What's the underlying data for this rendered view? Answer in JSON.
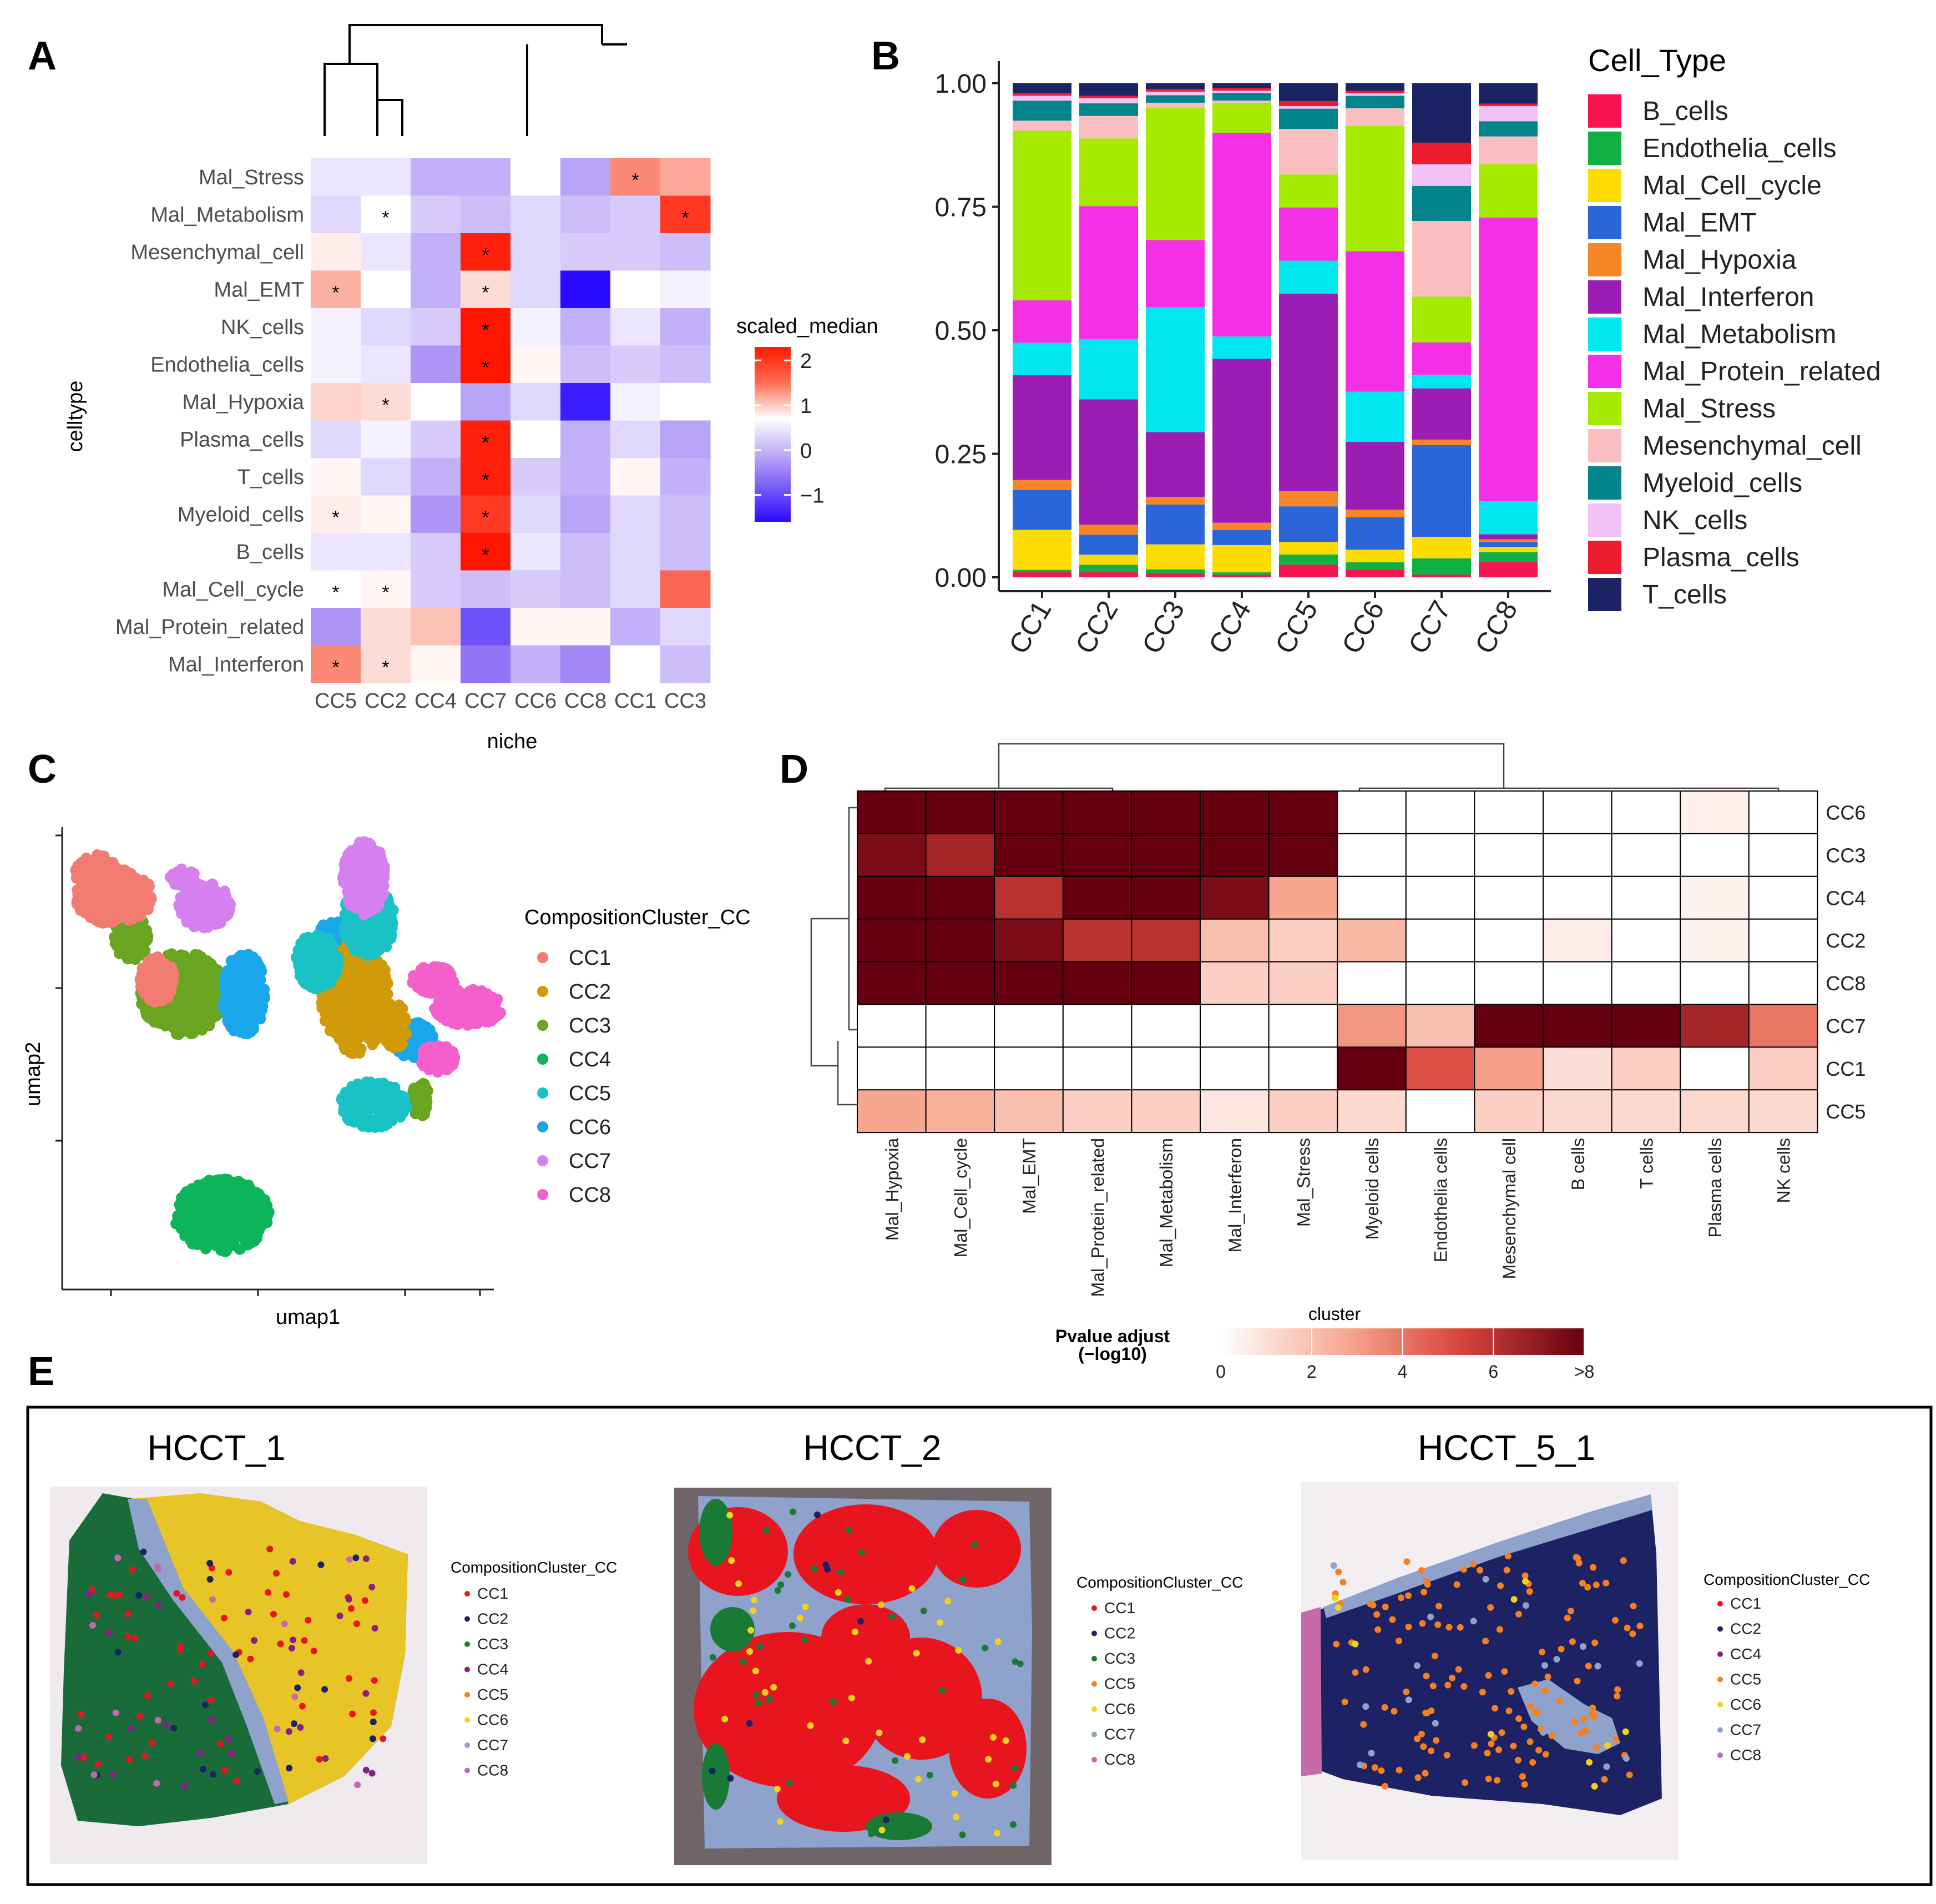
{
  "figure": {
    "panel_letters": [
      "A",
      "B",
      "C",
      "D",
      "E"
    ]
  },
  "colors": {
    "cell_types": {
      "B_cells": "#F8144E",
      "Endothelia_cells": "#10B043",
      "Mal_Cell_cycle": "#FDDC02",
      "Mal_EMT": "#2B66D8",
      "Mal_Hypoxia": "#F78726",
      "Mal_Interferon": "#9B1DB3",
      "Mal_Metabolism": "#00E7EF",
      "Mal_Protein_related": "#F52FE6",
      "Mal_Stress": "#A6EA02",
      "Mesenchymal_cell": "#FABDC0",
      "Myeloid_cells": "#03838A",
      "NK_cells": "#F2C1F5",
      "Plasma_cells": "#EC1C2E",
      "T_cells": "#1B2365"
    },
    "clusters": {
      "CC1": "#F47B71",
      "CC2": "#D19A08",
      "CC3": "#69A521",
      "CC4": "#0DB45A",
      "CC5": "#18C2C5",
      "CC6": "#1AA6EB",
      "CC7": "#D680F0",
      "CC8": "#F55FCB"
    },
    "spatial": {
      "CC1": "#E8141E",
      "CC2": "#1C2263",
      "CC3": "#197A36",
      "CC4": "#8B1E82",
      "CC5": "#F7801E",
      "CC6": "#F3D21A",
      "CC7": "#8EA2CC",
      "CC8": "#C468B4"
    }
  },
  "chart_data": [
    {
      "panel": "A",
      "type": "heatmap",
      "xlabel": "niche",
      "ylabel": "celltype",
      "columns": [
        "CC5",
        "CC2",
        "CC4",
        "CC7",
        "CC6",
        "CC8",
        "CC1",
        "CC3"
      ],
      "rows": [
        "Mal_Stress",
        "Mal_Metabolism",
        "Mesenchymal_cell",
        "Mal_EMT",
        "NK_cells",
        "Endothelia_cells",
        "Mal_Hypoxia",
        "Plasma_cells",
        "T_cells",
        "Myeloid_cells",
        "B_cells",
        "Mal_Cell_cycle",
        "Mal_Protein_related",
        "Mal_Interferon"
      ],
      "values": [
        [
          -0.2,
          -0.2,
          -0.6,
          -0.6,
          0.0,
          -0.7,
          1.3,
          1.0
        ],
        [
          -0.3,
          0.0,
          -0.4,
          -0.5,
          -0.3,
          -0.5,
          -0.4,
          2.0
        ],
        [
          0.2,
          -0.2,
          -0.6,
          2.2,
          -0.3,
          -0.4,
          -0.4,
          -0.5
        ],
        [
          0.9,
          0.0,
          -0.6,
          0.4,
          -0.3,
          -1.6,
          0.0,
          -0.1
        ],
        [
          -0.1,
          -0.3,
          -0.4,
          2.3,
          -0.1,
          -0.6,
          -0.2,
          -0.6
        ],
        [
          -0.1,
          -0.2,
          -0.8,
          2.3,
          0.1,
          -0.5,
          -0.4,
          -0.5
        ],
        [
          0.5,
          0.4,
          0.0,
          -0.7,
          -0.3,
          -1.5,
          -0.1,
          0.0
        ],
        [
          -0.3,
          -0.1,
          -0.4,
          2.2,
          0.0,
          -0.6,
          -0.3,
          -0.7
        ],
        [
          0.1,
          -0.3,
          -0.6,
          2.2,
          -0.4,
          -0.6,
          0.1,
          -0.6
        ],
        [
          0.2,
          0.1,
          -0.8,
          2.0,
          -0.3,
          -0.7,
          -0.3,
          -0.5
        ],
        [
          -0.2,
          -0.2,
          -0.4,
          2.3,
          -0.2,
          -0.5,
          -0.3,
          -0.5
        ],
        [
          0.0,
          0.1,
          -0.4,
          -0.5,
          -0.4,
          -0.5,
          -0.3,
          1.6
        ],
        [
          -0.8,
          0.4,
          0.7,
          -1.2,
          0.1,
          0.1,
          -0.6,
          -0.3
        ],
        [
          1.3,
          0.4,
          0.1,
          -1.0,
          -0.6,
          -0.9,
          0.0,
          -0.5
        ]
      ],
      "stars": [
        [
          0,
          0,
          0,
          0,
          0,
          0,
          1,
          0
        ],
        [
          0,
          1,
          0,
          0,
          0,
          0,
          0,
          1
        ],
        [
          0,
          0,
          0,
          1,
          0,
          0,
          0,
          0
        ],
        [
          1,
          0,
          0,
          1,
          0,
          0,
          0,
          0
        ],
        [
          0,
          0,
          0,
          1,
          0,
          0,
          0,
          0
        ],
        [
          0,
          0,
          0,
          1,
          0,
          0,
          0,
          0
        ],
        [
          0,
          1,
          0,
          0,
          0,
          0,
          0,
          0
        ],
        [
          0,
          0,
          0,
          1,
          0,
          0,
          0,
          0
        ],
        [
          0,
          0,
          0,
          1,
          0,
          0,
          0,
          0
        ],
        [
          1,
          0,
          0,
          1,
          0,
          0,
          0,
          0
        ],
        [
          0,
          0,
          0,
          1,
          0,
          0,
          0,
          0
        ],
        [
          1,
          1,
          0,
          0,
          0,
          0,
          0,
          0
        ],
        [
          0,
          0,
          0,
          0,
          0,
          0,
          0,
          0
        ],
        [
          1,
          1,
          0,
          0,
          0,
          0,
          0,
          0
        ]
      ],
      "star_label": "*",
      "legend": {
        "title": "scaled_median",
        "ticks": [
          "2",
          "1",
          "0",
          "−1"
        ],
        "tick_values": [
          2,
          1,
          0,
          -1
        ],
        "range": [
          -1.6,
          2.3
        ]
      }
    },
    {
      "panel": "B",
      "type": "bar",
      "stacked": true,
      "categories": [
        "CC1",
        "CC2",
        "CC3",
        "CC4",
        "CC5",
        "CC6",
        "CC7",
        "CC8"
      ],
      "ylim": [
        0,
        1
      ],
      "yticks": [
        "0.00",
        "0.25",
        "0.50",
        "0.75",
        "1.00"
      ],
      "ytick_values": [
        0,
        0.25,
        0.5,
        0.75,
        1.0
      ],
      "legend_title": "Cell_Type",
      "series": [
        {
          "name": "B_cells",
          "values": [
            0.01,
            0.01,
            0.008,
            0.005,
            0.025,
            0.015,
            0.005,
            0.03
          ]
        },
        {
          "name": "Endothelia_cells",
          "values": [
            0.005,
            0.015,
            0.008,
            0.005,
            0.02,
            0.015,
            0.03,
            0.02
          ]
        },
        {
          "name": "Mal_Cell_cycle",
          "values": [
            0.08,
            0.02,
            0.05,
            0.055,
            0.025,
            0.025,
            0.04,
            0.01
          ]
        },
        {
          "name": "Mal_EMT",
          "values": [
            0.08,
            0.04,
            0.08,
            0.03,
            0.07,
            0.065,
            0.17,
            0.01
          ]
        },
        {
          "name": "Mal_Hypoxia",
          "values": [
            0.02,
            0.02,
            0.015,
            0.015,
            0.03,
            0.015,
            0.01,
            0.005
          ]
        },
        {
          "name": "Mal_Interferon",
          "values": [
            0.21,
            0.25,
            0.13,
            0.33,
            0.39,
            0.135,
            0.095,
            0.01
          ]
        },
        {
          "name": "Mal_Metabolism",
          "values": [
            0.065,
            0.12,
            0.25,
            0.045,
            0.065,
            0.1,
            0.025,
            0.065
          ]
        },
        {
          "name": "Mal_Protein_related",
          "values": [
            0.085,
            0.265,
            0.135,
            0.41,
            0.105,
            0.28,
            0.06,
            0.56
          ]
        },
        {
          "name": "Mal_Stress",
          "values": [
            0.34,
            0.135,
            0.265,
            0.06,
            0.065,
            0.25,
            0.085,
            0.105
          ]
        },
        {
          "name": "Mesenchymal_cell",
          "values": [
            0.02,
            0.045,
            0.01,
            0.005,
            0.09,
            0.035,
            0.14,
            0.055
          ]
        },
        {
          "name": "Myeloid_cells",
          "values": [
            0.04,
            0.025,
            0.015,
            0.015,
            0.04,
            0.025,
            0.065,
            0.03
          ]
        },
        {
          "name": "NK_cells",
          "values": [
            0.01,
            0.01,
            0.007,
            0.005,
            0.005,
            0.005,
            0.04,
            0.03
          ]
        },
        {
          "name": "Plasma_cells",
          "values": [
            0.005,
            0.005,
            0.005,
            0.005,
            0.01,
            0.005,
            0.04,
            0.005
          ]
        },
        {
          "name": "T_cells",
          "values": [
            0.02,
            0.025,
            0.012,
            0.01,
            0.035,
            0.015,
            0.11,
            0.04
          ]
        }
      ]
    },
    {
      "panel": "C",
      "type": "scatter",
      "xlabel": "umap1",
      "ylabel": "umap2",
      "legend_title": "CompositionCluster_CC",
      "legend_entries": [
        "CC1",
        "CC2",
        "CC3",
        "CC4",
        "CC5",
        "CC6",
        "CC7",
        "CC8"
      ],
      "clusters": [
        {
          "name": "CC1",
          "blobs": [
            [
              0.12,
              0.15,
              0.09,
              0.06
            ],
            [
              0.22,
              0.33,
              0.04,
              0.05
            ],
            [
              0.08,
              0.1,
              0.05,
              0.04
            ]
          ]
        },
        {
          "name": "CC2",
          "blobs": [
            [
              0.68,
              0.37,
              0.08,
              0.12
            ],
            [
              0.77,
              0.43,
              0.03,
              0.05
            ]
          ]
        },
        {
          "name": "CC3",
          "blobs": [
            [
              0.28,
              0.36,
              0.1,
              0.09
            ],
            [
              0.16,
              0.24,
              0.04,
              0.05
            ],
            [
              0.83,
              0.59,
              0.02,
              0.04
            ]
          ]
        },
        {
          "name": "CC4",
          "blobs": [
            [
              0.37,
              0.84,
              0.11,
              0.08
            ]
          ]
        },
        {
          "name": "CC5",
          "blobs": [
            [
              0.71,
              0.2,
              0.06,
              0.08
            ],
            [
              0.72,
              0.6,
              0.08,
              0.05
            ],
            [
              0.59,
              0.29,
              0.05,
              0.06
            ]
          ]
        },
        {
          "name": "CC6",
          "blobs": [
            [
              0.42,
              0.36,
              0.05,
              0.09
            ],
            [
              0.63,
              0.25,
              0.04,
              0.05
            ],
            [
              0.81,
              0.46,
              0.05,
              0.04
            ]
          ]
        },
        {
          "name": "CC7",
          "blobs": [
            [
              0.33,
              0.17,
              0.06,
              0.05
            ],
            [
              0.7,
              0.11,
              0.05,
              0.08
            ],
            [
              0.28,
              0.11,
              0.03,
              0.02
            ]
          ]
        },
        {
          "name": "CC8",
          "blobs": [
            [
              0.94,
              0.39,
              0.08,
              0.04
            ],
            [
              0.86,
              0.33,
              0.05,
              0.03
            ],
            [
              0.87,
              0.5,
              0.04,
              0.03
            ]
          ]
        }
      ]
    },
    {
      "panel": "D",
      "type": "heatmap",
      "columns": [
        "Mal_Hypoxia",
        "Mal_Cell_cycle",
        "Mal_EMT",
        "Mal_Protein_related",
        "Mal_Metabolism",
        "Mal_Interferon",
        "Mal_Stress",
        "Myeloid cells",
        "Endothelia cells",
        "Mesenchymal cell",
        "B cells",
        "T cells",
        "Plasma cells",
        "NK cells"
      ],
      "rows": [
        "CC6",
        "CC3",
        "CC4",
        "CC2",
        "CC8",
        "CC7",
        "CC1",
        "CC5"
      ],
      "values": [
        [
          8,
          8,
          8,
          8,
          8,
          8,
          8,
          0,
          0,
          0,
          0,
          0,
          0.5,
          0
        ],
        [
          7.5,
          6.5,
          8,
          8,
          8,
          8,
          8,
          0,
          0,
          0,
          0,
          0,
          0,
          0
        ],
        [
          8,
          8,
          6,
          8,
          8,
          7.5,
          2.8,
          0,
          0,
          0,
          0,
          0,
          0.4,
          0
        ],
        [
          8,
          8,
          7.5,
          6,
          6,
          2,
          1.5,
          2.2,
          0,
          0,
          0.6,
          0,
          0.4,
          0
        ],
        [
          8,
          8,
          8,
          8,
          8,
          1.5,
          1.5,
          0,
          0,
          0,
          0,
          0,
          0,
          0
        ],
        [
          0,
          0,
          0,
          0,
          0,
          0,
          0,
          3.2,
          2,
          8,
          8,
          8,
          6.5,
          4
        ],
        [
          0,
          0,
          0,
          0,
          0,
          0,
          0,
          8,
          5,
          3,
          1,
          1.5,
          0,
          1.5
        ],
        [
          2.8,
          2.5,
          2,
          1.5,
          1.5,
          0.8,
          1.5,
          1.2,
          0,
          1.5,
          1.2,
          1.2,
          1.2,
          1.2
        ]
      ],
      "legend": {
        "title_line1": "Pvalue adjust",
        "title_line2": "(−log10)",
        "label": "cluster",
        "ticks": [
          "0",
          "2",
          "4",
          "6",
          ">8"
        ],
        "tick_values": [
          0,
          2,
          4,
          6,
          8
        ]
      }
    }
  ],
  "panel_e": {
    "samples": [
      {
        "title": "HCCT_1",
        "legend_title": "CompositionCluster_CC",
        "clusters": [
          "CC1",
          "CC2",
          "CC3",
          "CC4",
          "CC5",
          "CC6",
          "CC7",
          "CC8"
        ]
      },
      {
        "title": "HCCT_2",
        "legend_title": "CompositionCluster_CC",
        "clusters": [
          "CC1",
          "CC2",
          "CC3",
          "CC5",
          "CC6",
          "CC7",
          "CC8"
        ]
      },
      {
        "title": "HCCT_5_1",
        "legend_title": "CompositionCluster_CC",
        "clusters": [
          "CC1",
          "CC2",
          "CC4",
          "CC5",
          "CC6",
          "CC7",
          "CC8"
        ]
      }
    ]
  }
}
